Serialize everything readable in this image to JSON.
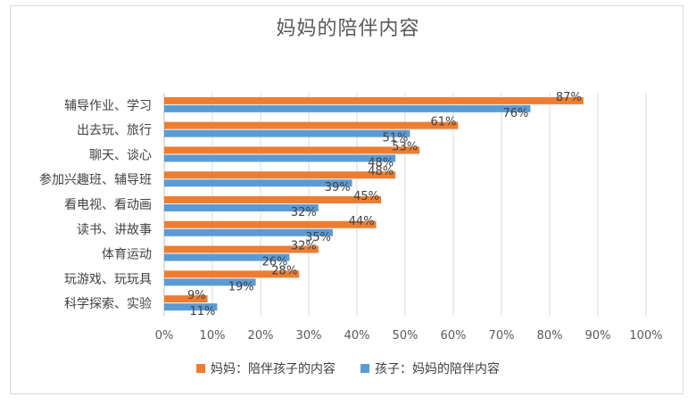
{
  "chart_data": {
    "type": "bar",
    "orientation": "horizontal",
    "title": "妈妈的陪伴内容",
    "categories": [
      "辅导作业、学习",
      "出去玩、旅行",
      "聊天、谈心",
      "参加兴趣班、辅导班",
      "看电视、看动画",
      "读书、讲故事",
      "体育运动",
      "玩游戏、玩玩具",
      "科学探索、实验"
    ],
    "series": [
      {
        "name": "妈妈：陪伴孩子的内容",
        "color": "#ed7d31",
        "values": [
          87,
          61,
          53,
          48,
          45,
          44,
          32,
          28,
          9
        ]
      },
      {
        "name": "孩子：妈妈的陪伴内容",
        "color": "#5b9bd5",
        "values": [
          76,
          51,
          48,
          39,
          32,
          35,
          26,
          19,
          11
        ]
      }
    ],
    "x_ticks": [
      "0%",
      "10%",
      "20%",
      "30%",
      "40%",
      "50%",
      "60%",
      "70%",
      "80%",
      "90%",
      "100%"
    ],
    "xlim": [
      0,
      100
    ],
    "value_suffix": "%",
    "grid": "vertical",
    "legend_position": "bottom"
  }
}
